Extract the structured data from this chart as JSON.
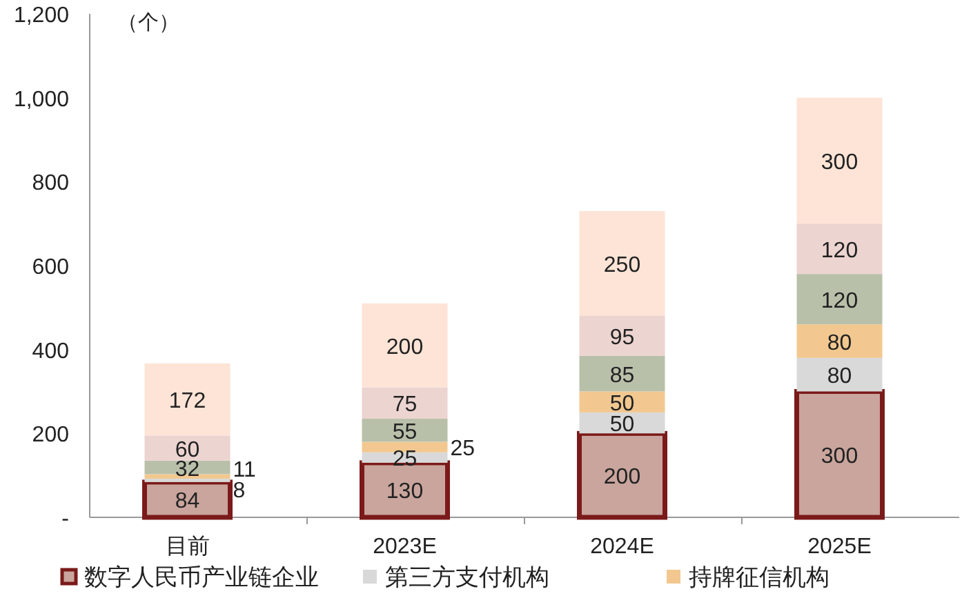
{
  "chart_data": {
    "type": "bar",
    "stacked": true,
    "ylabel": "（个）",
    "categories": [
      "目前",
      "2023E",
      "2024E",
      "2025E"
    ],
    "series": [
      {
        "name": "数字人民币产业链企业",
        "color": "#c9a59d",
        "values": [
          84,
          130,
          200,
          300
        ]
      },
      {
        "name": "第三方支付机构",
        "color": "#d9d9d9",
        "values": [
          8,
          25,
          50,
          80
        ]
      },
      {
        "name": "持牌征信机构",
        "color": "#f2c890",
        "values": [
          11,
          25,
          50,
          80
        ]
      },
      {
        "color": "#b9c0aa",
        "values": [
          32,
          55,
          85,
          120
        ]
      },
      {
        "color": "#ecd4d1",
        "values": [
          60,
          75,
          95,
          120
        ]
      },
      {
        "color": "#fde4d6",
        "values": [
          172,
          200,
          250,
          300
        ]
      }
    ],
    "ylim": [
      0,
      1200
    ],
    "yticks": [
      {
        "value": 0,
        "label": "-"
      },
      200,
      400,
      600,
      800,
      {
        "value": 1000,
        "label": "1,000"
      },
      {
        "value": 1200,
        "label": "1,200"
      }
    ],
    "data_labels": true,
    "grid": false,
    "legend": "bottom"
  }
}
